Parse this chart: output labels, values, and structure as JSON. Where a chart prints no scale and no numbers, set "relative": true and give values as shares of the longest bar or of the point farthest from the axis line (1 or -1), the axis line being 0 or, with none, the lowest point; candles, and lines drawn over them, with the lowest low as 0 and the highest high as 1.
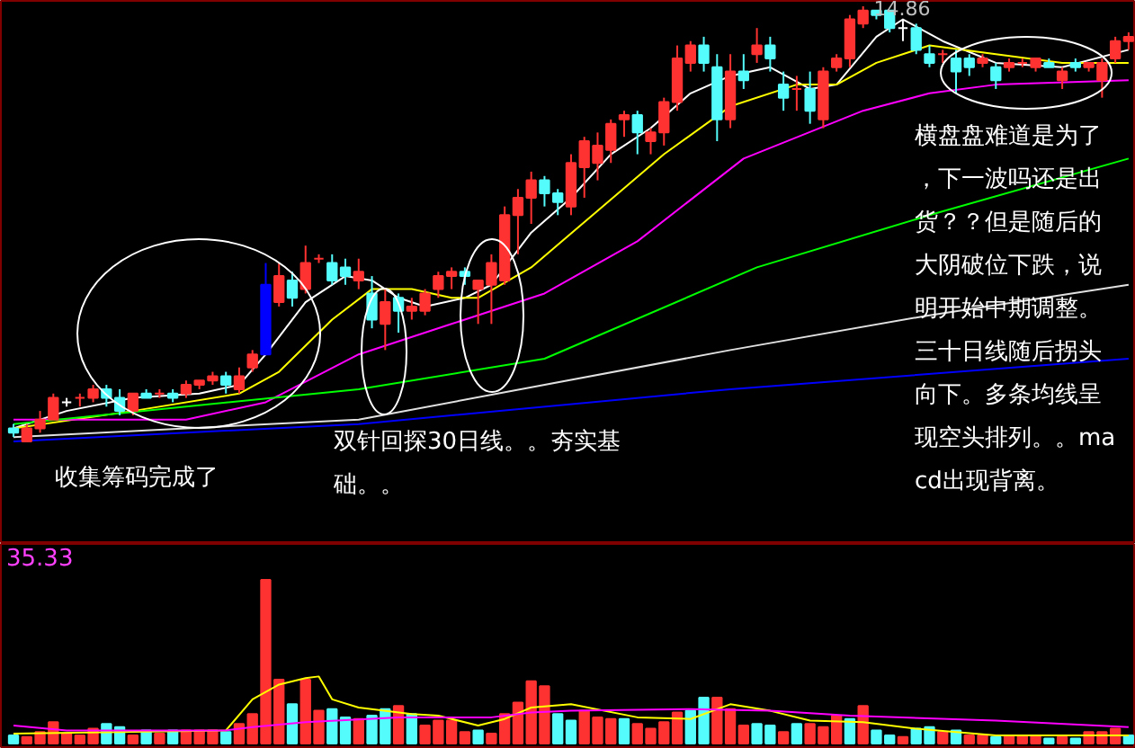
{
  "chart_data": [
    {
      "type": "candlestick",
      "relative": true,
      "tick_labels": false,
      "categories": [
        null,
        null,
        null,
        null,
        null,
        null,
        null,
        null,
        null,
        null,
        null,
        null,
        null,
        null,
        null,
        null,
        null,
        null,
        null,
        null,
        null,
        null,
        null,
        null,
        null,
        null,
        null,
        null,
        null,
        null,
        null,
        null,
        null,
        null,
        null,
        null,
        null,
        null,
        null,
        null,
        null,
        null,
        null,
        null,
        null,
        null,
        null,
        null,
        null,
        null,
        null,
        null,
        null,
        null,
        null,
        null,
        null,
        null,
        null,
        null,
        null,
        null,
        null,
        null,
        null,
        null,
        null,
        null,
        null,
        null,
        null,
        null,
        null,
        null,
        null,
        null,
        null,
        null,
        null,
        null,
        null,
        null,
        null,
        null,
        null
      ],
      "ohlc": [
        [
          0.03,
          0.04,
          0.01,
          0.02
        ],
        [
          0.0,
          0.04,
          0,
          0.03
        ],
        [
          0.03,
          0.07,
          0.02,
          0.05
        ],
        [
          0.05,
          0.11,
          0.05,
          0.1
        ],
        [
          0.09,
          0.1,
          0.08,
          0.09
        ],
        [
          0.1,
          0.11,
          0.08,
          0.1
        ],
        [
          0.1,
          0.13,
          0.09,
          0.12
        ],
        [
          0.12,
          0.13,
          0.08,
          0.1
        ],
        [
          0.1,
          0.12,
          0.06,
          0.07
        ],
        [
          0.07,
          0.11,
          0.06,
          0.11
        ],
        [
          0.11,
          0.12,
          0.1,
          0.1
        ],
        [
          0.11,
          0.12,
          0.1,
          0.11
        ],
        [
          0.11,
          0.12,
          0.09,
          0.1
        ],
        [
          0.11,
          0.14,
          0.1,
          0.13
        ],
        [
          0.13,
          0.14,
          0.12,
          0.14
        ],
        [
          0.14,
          0.16,
          0.13,
          0.15
        ],
        [
          0.15,
          0.16,
          0.11,
          0.13
        ],
        [
          0.12,
          0.17,
          0.11,
          0.15
        ],
        [
          0.17,
          0.21,
          0.16,
          0.2
        ],
        [
          0.2,
          0.41,
          0.2,
          0.36
        ],
        [
          0.32,
          0.41,
          0.31,
          0.38
        ],
        [
          0.37,
          0.39,
          0.31,
          0.33
        ],
        [
          0.35,
          0.45,
          0.34,
          0.41
        ],
        [
          0.42,
          0.43,
          0.41,
          0.42
        ],
        [
          0.41,
          0.43,
          0.36,
          0.37
        ],
        [
          0.4,
          0.42,
          0.36,
          0.38
        ],
        [
          0.37,
          0.42,
          0.35,
          0.39
        ],
        [
          0.34,
          0.38,
          0.26,
          0.28
        ],
        [
          0.27,
          0.35,
          0.21,
          0.32
        ],
        [
          0.33,
          0.34,
          0.25,
          0.3
        ],
        [
          0.3,
          0.33,
          0.28,
          0.31
        ],
        [
          0.3,
          0.35,
          0.29,
          0.34
        ],
        [
          0.35,
          0.39,
          0.33,
          0.38
        ],
        [
          0.38,
          0.4,
          0.35,
          0.39
        ],
        [
          0.39,
          0.4,
          0.36,
          0.38
        ],
        [
          0.35,
          0.37,
          0.27,
          0.37
        ],
        [
          0.36,
          0.43,
          0.27,
          0.41
        ],
        [
          0.37,
          0.54,
          0.36,
          0.52
        ],
        [
          0.52,
          0.58,
          0.43,
          0.56
        ],
        [
          0.56,
          0.62,
          0.5,
          0.6
        ],
        [
          0.6,
          0.61,
          0.54,
          0.57
        ],
        [
          0.57,
          0.58,
          0.52,
          0.55
        ],
        [
          0.54,
          0.66,
          0.52,
          0.64
        ],
        [
          0.63,
          0.7,
          0.56,
          0.69
        ],
        [
          0.64,
          0.71,
          0.6,
          0.68
        ],
        [
          0.67,
          0.74,
          0.64,
          0.73
        ],
        [
          0.74,
          0.76,
          0.7,
          0.75
        ],
        [
          0.75,
          0.76,
          0.66,
          0.71
        ],
        [
          0.69,
          0.72,
          0.66,
          0.71
        ],
        [
          0.71,
          0.79,
          0.68,
          0.78
        ],
        [
          0.78,
          0.91,
          0.76,
          0.88
        ],
        [
          0.87,
          0.92,
          0.85,
          0.91
        ],
        [
          0.91,
          0.93,
          0.85,
          0.87
        ],
        [
          0.86,
          0.89,
          0.69,
          0.74
        ],
        [
          0.74,
          0.89,
          0.72,
          0.85
        ],
        [
          0.85,
          0.89,
          0.81,
          0.83
        ],
        [
          0.89,
          0.95,
          0.87,
          0.91
        ],
        [
          0.91,
          0.93,
          0.85,
          0.88
        ],
        [
          0.82,
          0.85,
          0.76,
          0.79
        ],
        [
          0.81,
          0.84,
          0.76,
          0.81
        ],
        [
          0.81,
          0.85,
          0.73,
          0.76
        ],
        [
          0.74,
          0.86,
          0.72,
          0.85
        ],
        [
          0.86,
          0.89,
          0.85,
          0.88
        ],
        [
          0.88,
          0.98,
          0.86,
          0.97
        ],
        [
          0.96,
          1,
          0.95,
          0.99
        ],
        [
          0.99,
          0.99,
          0.97,
          0.98
        ],
        [
          0.99,
          0.99,
          0.94,
          0.95
        ],
        [
          0.95,
          0.97,
          0.92,
          0.95
        ],
        [
          0.95,
          0.96,
          0.89,
          0.9
        ],
        [
          0.89,
          0.91,
          0.86,
          0.87
        ],
        [
          0.89,
          0.9,
          0.87,
          0.89
        ],
        [
          0.88,
          0.9,
          0.8,
          0.85
        ],
        [
          0.88,
          0.89,
          0.84,
          0.86
        ],
        [
          0.87,
          0.89,
          0.86,
          0.88
        ],
        [
          0.86,
          0.87,
          0.81,
          0.83
        ],
        [
          0.86,
          0.88,
          0.85,
          0.87
        ],
        [
          0.87,
          0.88,
          0.86,
          0.87
        ],
        [
          0.86,
          0.88,
          0.85,
          0.88
        ],
        [
          0.87,
          0.88,
          0.86,
          0.86
        ],
        [
          0.83,
          0.86,
          0.81,
          0.85
        ],
        [
          0.87,
          0.88,
          0.85,
          0.86
        ],
        [
          0.86,
          0.87,
          0.85,
          0.87
        ],
        [
          0.83,
          0.88,
          0.79,
          0.87
        ],
        [
          0.88,
          0.93,
          0.87,
          0.92
        ],
        [
          0.92,
          0.94,
          0.9,
          0.93
        ]
      ],
      "colors": [
        "#54fcfc",
        "#ff3232",
        "#ff3232",
        "#ff3232",
        "#ffffff",
        "#ff3232",
        "#ff3232",
        "#54fcfc",
        "#54fcfc",
        "#ff3232",
        "#54fcfc",
        "#ff3232",
        "#54fcfc",
        "#ff3232",
        "#ff3232",
        "#ff3232",
        "#54fcfc",
        "#ff3232",
        "#ff3232",
        "#0000ff",
        "#ff3232",
        "#54fcfc",
        "#ff3232",
        "#ff3232",
        "#54fcfc",
        "#54fcfc",
        "#ff3232",
        "#54fcfc",
        "#ff3232",
        "#54fcfc",
        "#ff3232",
        "#ff3232",
        "#ff3232",
        "#ff3232",
        "#54fcfc",
        "#ff3232",
        "#ff3232",
        "#ff3232",
        "#ff3232",
        "#ff3232",
        "#54fcfc",
        "#54fcfc",
        "#ff3232",
        "#ff3232",
        "#ff3232",
        "#ff3232",
        "#ff3232",
        "#54fcfc",
        "#ff3232",
        "#ff3232",
        "#ff3232",
        "#ff3232",
        "#54fcfc",
        "#54fcfc",
        "#ff3232",
        "#54fcfc",
        "#ff3232",
        "#54fcfc",
        "#54fcfc",
        "#ff3232",
        "#54fcfc",
        "#ff3232",
        "#ff3232",
        "#ff3232",
        "#ff3232",
        "#54fcfc",
        "#54fcfc",
        "#ffffff",
        "#54fcfc",
        "#54fcfc",
        "#ff3232",
        "#54fcfc",
        "#54fcfc",
        "#ff3232",
        "#54fcfc",
        "#ff3232",
        "#ff3232",
        "#ff3232",
        "#54fcfc",
        "#ff3232",
        "#54fcfc",
        "#ff3232",
        "#ff3232",
        "#ff3232",
        "#ff3232"
      ],
      "series": [
        {
          "type": "line",
          "color": "#ffffff",
          "values": [
            0.03,
            null,
            null,
            null,
            0.07,
            null,
            null,
            null,
            null,
            0.1,
            null,
            null,
            null,
            null,
            0.11,
            null,
            null,
            0.13,
            null,
            0.2,
            null,
            null,
            0.32,
            null,
            null,
            0.38,
            null,
            0.37,
            null,
            0.33,
            null,
            0.31,
            null,
            null,
            0.33,
            null,
            0.36,
            null,
            null,
            0.48,
            null,
            null,
            0.56,
            null,
            null,
            0.66,
            null,
            null,
            0.72,
            null,
            null,
            0.8,
            null,
            null,
            0.84,
            null,
            null,
            0.86,
            null,
            null,
            0.81,
            null,
            0.82,
            null,
            null,
            0.93,
            null,
            0.97,
            null,
            null,
            0.92,
            null,
            null,
            null,
            0.87,
            null,
            null,
            null,
            null,
            0.86,
            null,
            null,
            null,
            null,
            0.9
          ]
        },
        {
          "type": "line",
          "color": "#ffff00",
          "values": [
            0.03,
            null,
            null,
            null,
            null,
            null,
            null,
            null,
            null,
            0.07,
            null,
            null,
            null,
            null,
            null,
            null,
            null,
            0.11,
            null,
            null,
            0.16,
            null,
            null,
            null,
            0.28,
            null,
            null,
            0.35,
            null,
            null,
            0.35,
            null,
            null,
            0.33,
            null,
            0.33,
            null,
            null,
            null,
            0.4,
            null,
            null,
            null,
            null,
            0.53,
            null,
            null,
            null,
            null,
            0.66,
            null,
            null,
            null,
            null,
            0.77,
            null,
            null,
            null,
            null,
            0.82,
            null,
            null,
            0.82,
            null,
            null,
            0.87,
            null,
            null,
            null,
            0.91,
            null,
            null,
            null,
            null,
            0.89,
            null,
            null,
            null,
            null,
            0.87,
            null,
            null,
            null,
            null,
            0.87
          ]
        },
        {
          "type": "line",
          "color": "#ff00ff",
          "values": [
            0.05,
            null,
            null,
            null,
            null,
            null,
            null,
            null,
            null,
            null,
            null,
            null,
            null,
            0.05,
            null,
            null,
            null,
            null,
            null,
            0.09,
            null,
            null,
            null,
            null,
            null,
            null,
            0.2,
            null,
            null,
            null,
            null,
            null,
            null,
            0.27,
            null,
            null,
            null,
            null,
            null,
            null,
            0.34,
            null,
            null,
            null,
            null,
            null,
            null,
            0.46,
            null,
            null,
            null,
            null,
            null,
            null,
            null,
            0.65,
            null,
            null,
            null,
            null,
            null,
            null,
            null,
            null,
            0.76,
            null,
            null,
            null,
            null,
            0.8,
            null,
            null,
            null,
            null,
            0.82,
            null,
            null,
            null,
            null,
            null,
            null,
            null,
            null,
            null,
            0.83
          ]
        },
        {
          "type": "line",
          "color": "#00ff00",
          "values": [
            0.04,
            null,
            null,
            null,
            null,
            null,
            null,
            null,
            null,
            null,
            null,
            null,
            null,
            null,
            null,
            null,
            null,
            null,
            null,
            null,
            null,
            null,
            null,
            null,
            null,
            null,
            0.12,
            null,
            null,
            null,
            null,
            null,
            null,
            null,
            null,
            null,
            null,
            null,
            null,
            null,
            0.19,
            null,
            null,
            null,
            null,
            null,
            null,
            null,
            null,
            null,
            null,
            null,
            null,
            null,
            null,
            null,
            0.4,
            null,
            null,
            null,
            null,
            null,
            null,
            null,
            null,
            null,
            null,
            null,
            null,
            0.52,
            null,
            null,
            null,
            null,
            null,
            null,
            null,
            null,
            null,
            null,
            null,
            null,
            null,
            null,
            0.65
          ]
        },
        {
          "type": "line",
          "color": "#e0e0e0",
          "values": [
            0.01,
            null,
            null,
            null,
            null,
            null,
            null,
            null,
            null,
            null,
            null,
            null,
            null,
            null,
            null,
            null,
            null,
            null,
            null,
            null,
            null,
            null,
            null,
            null,
            null,
            null,
            0.05,
            null,
            null,
            null,
            null,
            null,
            null,
            null,
            null,
            null,
            null,
            null,
            null,
            null,
            null,
            null,
            null,
            null,
            null,
            null,
            null,
            null,
            null,
            null,
            null,
            null,
            null,
            null,
            0.21,
            null,
            null,
            null,
            null,
            null,
            null,
            null,
            null,
            null,
            null,
            null,
            null,
            null,
            null,
            0.29,
            null,
            null,
            null,
            null,
            null,
            null,
            null,
            null,
            null,
            null,
            null,
            null,
            null,
            null,
            0.36
          ]
        },
        {
          "type": "line",
          "color": "#0000ff",
          "values": [
            0.0,
            null,
            null,
            null,
            null,
            null,
            null,
            null,
            null,
            null,
            null,
            null,
            null,
            null,
            null,
            null,
            null,
            null,
            null,
            null,
            null,
            null,
            null,
            null,
            null,
            null,
            0.04,
            null,
            null,
            null,
            null,
            null,
            null,
            null,
            null,
            null,
            null,
            null,
            null,
            null,
            null,
            null,
            null,
            null,
            null,
            null,
            null,
            null,
            null,
            null,
            null,
            null,
            null,
            null,
            0.12,
            null,
            null,
            null,
            null,
            null,
            null,
            null,
            null,
            null,
            null,
            null,
            null,
            null,
            null,
            null,
            null,
            null,
            null,
            null,
            null,
            null,
            null,
            null,
            null,
            null,
            null,
            null,
            null,
            null,
            0.19
          ]
        }
      ],
      "annotations": [
        {
          "text": "14.86",
          "y": 1
        },
        "收集筹码完成了",
        "双针回探30日线。。夯实基础。。",
        "横盘盘难道是为了，下一波吗还是出货？？但是随后的大阴破位下跌，说明开始中期调整。三十日线随后拐头向下。多条均线呈现空头排列。。macd出现背离。"
      ]
    },
    {
      "type": "bar",
      "relative": true,
      "tick_labels": false,
      "categories": [
        null,
        null,
        null,
        null,
        null,
        null,
        null,
        null,
        null,
        null,
        null,
        null,
        null,
        null,
        null,
        null,
        null,
        null,
        null,
        null,
        null,
        null,
        null,
        null,
        null,
        null,
        null,
        null,
        null,
        null,
        null,
        null,
        null,
        null,
        null,
        null,
        null,
        null,
        null,
        null,
        null,
        null,
        null,
        null,
        null,
        null,
        null,
        null,
        null,
        null,
        null,
        null,
        null,
        null,
        null,
        null,
        null,
        null,
        null,
        null,
        null,
        null,
        null,
        null,
        null,
        null,
        null,
        null,
        null,
        null,
        null,
        null,
        null,
        null,
        null,
        null,
        null,
        null,
        null,
        null,
        null,
        null,
        null,
        null,
        null
      ],
      "values": [
        0.05,
        0.04,
        0.07,
        0.13,
        0.06,
        0.05,
        0.09,
        0.12,
        0.1,
        0.05,
        0.08,
        0.06,
        0.08,
        0.08,
        0.08,
        0.08,
        0.07,
        0.12,
        0.18,
        1,
        0.39,
        0.24,
        0.39,
        0.2,
        0.21,
        0.16,
        0.15,
        0.17,
        0.21,
        0.23,
        0.18,
        0.11,
        0.14,
        0.14,
        0.07,
        0.08,
        0.06,
        0.18,
        0.25,
        0.38,
        0.35,
        0.18,
        0.14,
        0.2,
        0.16,
        0.15,
        0.15,
        0.12,
        0.09,
        0.13,
        0.19,
        0.2,
        0.28,
        0.28,
        0.21,
        0.11,
        0.12,
        0.11,
        0.07,
        0.12,
        0.12,
        0.1,
        0.17,
        0.15,
        0.23,
        0.08,
        0.05,
        0.04,
        0.09,
        0.1,
        0.07,
        0.08,
        0.05,
        0.05,
        0.04,
        0.05,
        0.05,
        0.05,
        0.03,
        0.04,
        0.03,
        0.07,
        0.07,
        0.09,
        0.05
      ],
      "colors": [
        "#54fcfc",
        "#ff3232",
        "#ff3232",
        "#ff3232",
        "#ff3232",
        "#ff3232",
        "#ff3232",
        "#54fcfc",
        "#54fcfc",
        "#ff3232",
        "#54fcfc",
        "#ff3232",
        "#54fcfc",
        "#ff3232",
        "#ff3232",
        "#ff3232",
        "#54fcfc",
        "#ff3232",
        "#ff3232",
        "#ff3232",
        "#ff3232",
        "#54fcfc",
        "#ff3232",
        "#ff3232",
        "#54fcfc",
        "#54fcfc",
        "#ff3232",
        "#54fcfc",
        "#54fcfc",
        "#ff3232",
        "#54fcfc",
        "#ff3232",
        "#ff3232",
        "#ff3232",
        "#ff3232",
        "#54fcfc",
        "#ff3232",
        "#ff3232",
        "#ff3232",
        "#ff3232",
        "#ff3232",
        "#54fcfc",
        "#54fcfc",
        "#ff3232",
        "#ff3232",
        "#ff3232",
        "#54fcfc",
        "#ff3232",
        "#ff3232",
        "#ff3232",
        "#ff3232",
        "#54fcfc",
        "#54fcfc",
        "#ff3232",
        "#ff3232",
        "#ff3232",
        "#54fcfc",
        "#54fcfc",
        "#ff3232",
        "#54fcfc",
        "#ff3232",
        "#ff3232",
        "#ff3232",
        "#54fcfc",
        "#ff3232",
        "#54fcfc",
        "#54fcfc",
        "#ff3232",
        "#54fcfc",
        "#54fcfc",
        "#ff3232",
        "#54fcfc",
        "#ff3232",
        "#ff3232",
        "#54fcfc",
        "#ff3232",
        "#ff3232",
        "#ff3232",
        "#54fcfc",
        "#ff3232",
        "#54fcfc",
        "#ff3232",
        "#ff3232",
        "#ff3232",
        "#54fcfc"
      ],
      "series": [
        {
          "type": "line",
          "color": "#ffff00",
          "values": [
            0.06,
            null,
            null,
            null,
            null,
            null,
            null,
            null,
            null,
            null,
            null,
            null,
            null,
            null,
            null,
            null,
            0.08,
            null,
            0.27,
            null,
            0.36,
            null,
            0.4,
            0.41,
            0.27,
            null,
            0.22,
            null,
            null,
            null,
            0.18,
            null,
            0.17,
            null,
            null,
            0.11,
            null,
            0.15,
            null,
            0.22,
            null,
            null,
            0.24,
            null,
            null,
            null,
            null,
            0.16,
            null,
            null,
            null,
            0.15,
            null,
            null,
            0.24,
            null,
            null,
            0.2,
            null,
            null,
            0.14,
            null,
            null,
            null,
            0.13,
            null,
            null,
            null,
            0.09,
            null,
            null,
            null,
            null,
            null,
            0.05,
            null,
            null,
            null,
            null,
            null,
            null,
            null,
            null,
            null,
            0.05
          ]
        },
        {
          "type": "line",
          "color": "#ff00ff",
          "values": [
            0.11,
            null,
            null,
            null,
            0.08,
            null,
            null,
            null,
            null,
            null,
            null,
            null,
            null,
            null,
            null,
            null,
            0.08,
            null,
            0.1,
            null,
            null,
            null,
            0.13,
            null,
            null,
            null,
            null,
            null,
            null,
            0.16,
            null,
            null,
            null,
            null,
            null,
            null,
            0.16,
            null,
            null,
            0.19,
            null,
            null,
            0.2,
            null,
            null,
            null,
            null,
            null,
            null,
            null,
            null,
            0.21,
            null,
            null,
            null,
            null,
            null,
            0.2,
            null,
            null,
            null,
            null,
            null,
            0.17,
            null,
            null,
            null,
            null,
            null,
            null,
            null,
            null,
            null,
            null,
            0.14,
            null,
            null,
            null,
            null,
            null,
            null,
            null,
            null,
            null,
            0.1
          ]
        }
      ],
      "annotations": [
        "35.33"
      ]
    }
  ]
}
